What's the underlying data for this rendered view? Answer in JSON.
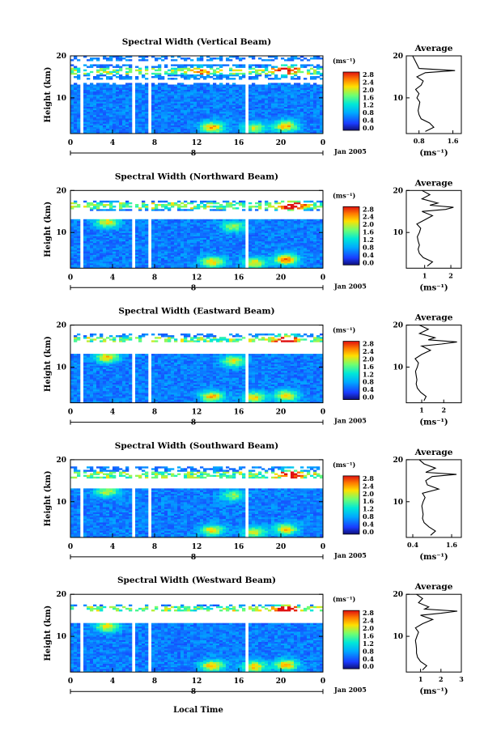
{
  "figure": {
    "date_label": "Jan 2005",
    "day_label": "8",
    "x_axis_label": "Local Time",
    "y_axis_label": "Height (km)",
    "colorbar_unit": "(ms⁻¹)",
    "colorbar_ticks": [
      "2.8",
      "2.4",
      "2.0",
      "1.6",
      "1.2",
      "0.8",
      "0.4",
      "0.0"
    ],
    "profile_title": "Average",
    "profile_xlabel": "(ms⁻¹)"
  },
  "chart_data": [
    {
      "type": "heatmap",
      "title": "Spectral Width (Vertical Beam)",
      "xlabel": "",
      "ylabel": "Height (km)",
      "x_ticks": [
        "0",
        "4",
        "8",
        "12",
        "16",
        "20",
        "0"
      ],
      "y_ticks": [
        "20",
        "10"
      ],
      "xlim": [
        0,
        24
      ],
      "ylim": [
        1.5,
        20
      ],
      "colorbar_range": [
        0.0,
        3.0
      ],
      "data_gaps_hours": [
        [
          1.0,
          1.3
        ],
        [
          5.7,
          6.0
        ],
        [
          7.4,
          7.7
        ],
        [
          16.5,
          16.8
        ]
      ],
      "empty_height_band_km": [
        [
          13.4,
          14.2
        ],
        [
          18.0,
          18.6
        ]
      ],
      "features": [
        {
          "x": 13.5,
          "y": 3.0,
          "value": 2.4
        },
        {
          "x": 17.5,
          "y": 2.8,
          "value": 2.0
        },
        {
          "x": 20.5,
          "y": 3.3,
          "value": 2.4
        },
        {
          "x": 12.5,
          "y": 16.5,
          "value": 1.4
        },
        {
          "x": 20.5,
          "y": 16.6,
          "value": 2.2
        }
      ],
      "profile": {
        "xlim": [
          0.5,
          1.8
        ],
        "x_ticks": [
          "0.8",
          "1.6"
        ],
        "heights": [
          2,
          3,
          4,
          5,
          6,
          7,
          8,
          9,
          10,
          11,
          12,
          13,
          14,
          15,
          16,
          16.5,
          17,
          18,
          19,
          20
        ],
        "values": [
          0.95,
          1.15,
          1.05,
          0.85,
          0.8,
          0.78,
          0.8,
          0.82,
          0.75,
          0.8,
          0.72,
          0.85,
          0.9,
          0.75,
          0.95,
          1.65,
          0.8,
          0.75,
          0.7,
          0.65
        ]
      }
    },
    {
      "type": "heatmap",
      "title": "Spectral Width (Northward Beam)",
      "xlabel": "",
      "ylabel": "Height (km)",
      "x_ticks": [
        "0",
        "4",
        "8",
        "12",
        "16",
        "20",
        "0"
      ],
      "y_ticks": [
        "20",
        "10"
      ],
      "xlim": [
        0,
        24
      ],
      "ylim": [
        1.5,
        20
      ],
      "colorbar_range": [
        0.0,
        3.0
      ],
      "data_gaps_hours": [
        [
          1.0,
          1.3
        ],
        [
          5.7,
          6.0
        ],
        [
          7.4,
          7.7
        ],
        [
          16.5,
          16.8
        ]
      ],
      "empty_height_band_km": [
        [
          13.2,
          15.2
        ],
        [
          17.4,
          20
        ]
      ],
      "features": [
        {
          "x": 13.5,
          "y": 3.0,
          "value": 2.3
        },
        {
          "x": 17.5,
          "y": 2.8,
          "value": 2.2
        },
        {
          "x": 20.5,
          "y": 3.6,
          "value": 2.6
        },
        {
          "x": 3.5,
          "y": 12.5,
          "value": 2.2
        },
        {
          "x": 21.0,
          "y": 16.5,
          "value": 2.8
        },
        {
          "x": 15.5,
          "y": 11.5,
          "value": 1.9
        }
      ],
      "profile": {
        "xlim": [
          0.3,
          2.4
        ],
        "x_ticks": [
          "1",
          "2"
        ],
        "heights": [
          2,
          3,
          4,
          5,
          6,
          7,
          8,
          9,
          10,
          11,
          12,
          13,
          14,
          15,
          15.5,
          16,
          16.5,
          17,
          18,
          19,
          20
        ],
        "values": [
          1.1,
          1.3,
          0.95,
          0.8,
          0.75,
          0.8,
          0.75,
          0.72,
          0.8,
          0.85,
          0.7,
          1.0,
          1.3,
          0.9,
          1.8,
          2.1,
          1.2,
          1.5,
          0.9,
          1.2,
          0.9
        ]
      }
    },
    {
      "type": "heatmap",
      "title": "Spectral Width (Eastward Beam)",
      "xlabel": "",
      "ylabel": "Height (km)",
      "x_ticks": [
        "0",
        "4",
        "8",
        "12",
        "16",
        "20",
        "0"
      ],
      "y_ticks": [
        "20",
        "10"
      ],
      "xlim": [
        0,
        24
      ],
      "ylim": [
        1.5,
        20
      ],
      "colorbar_range": [
        0.0,
        3.0
      ],
      "data_gaps_hours": [
        [
          1.0,
          1.3
        ],
        [
          5.7,
          6.0
        ],
        [
          7.4,
          7.7
        ],
        [
          16.5,
          16.8
        ]
      ],
      "empty_height_band_km": [
        [
          13.2,
          15.8
        ],
        [
          17.8,
          20
        ]
      ],
      "features": [
        {
          "x": 13.5,
          "y": 3.0,
          "value": 2.4
        },
        {
          "x": 17.5,
          "y": 2.8,
          "value": 2.2
        },
        {
          "x": 20.5,
          "y": 3.2,
          "value": 2.3
        },
        {
          "x": 3.5,
          "y": 12.4,
          "value": 2.3
        },
        {
          "x": 20.5,
          "y": 16.5,
          "value": 2.8
        },
        {
          "x": 15.5,
          "y": 11.5,
          "value": 2.1
        }
      ],
      "profile": {
        "xlim": [
          0.3,
          2.8
        ],
        "x_ticks": [
          "1",
          "2"
        ],
        "heights": [
          2,
          3,
          4,
          5,
          6,
          7,
          8,
          9,
          10,
          11,
          12,
          13,
          14,
          15,
          15.5,
          16,
          16.5,
          17,
          18,
          19,
          20
        ],
        "values": [
          1.1,
          1.2,
          0.95,
          0.8,
          0.75,
          0.78,
          0.75,
          0.72,
          0.8,
          0.85,
          0.7,
          1.0,
          1.4,
          1.0,
          1.9,
          2.6,
          1.3,
          1.6,
          0.9,
          1.3,
          0.9
        ]
      }
    },
    {
      "type": "heatmap",
      "title": "Spectral Width (Southward Beam)",
      "xlabel": "",
      "ylabel": "Height (km)",
      "x_ticks": [
        "0",
        "4",
        "8",
        "12",
        "16",
        "20",
        "0"
      ],
      "y_ticks": [
        "20",
        "10"
      ],
      "xlim": [
        0,
        24
      ],
      "ylim": [
        1.5,
        20
      ],
      "colorbar_range": [
        0.0,
        3.0
      ],
      "data_gaps_hours": [
        [
          1.0,
          1.3
        ],
        [
          5.7,
          6.0
        ],
        [
          7.4,
          7.7
        ],
        [
          16.5,
          16.8
        ]
      ],
      "empty_height_band_km": [
        [
          13.0,
          15.4
        ],
        [
          18.2,
          20
        ]
      ],
      "features": [
        {
          "x": 13.5,
          "y": 3.2,
          "value": 2.2
        },
        {
          "x": 17.5,
          "y": 2.8,
          "value": 2.1
        },
        {
          "x": 20.5,
          "y": 3.5,
          "value": 2.3
        },
        {
          "x": 3.5,
          "y": 12.5,
          "value": 2.0
        },
        {
          "x": 21.0,
          "y": 16.5,
          "value": 2.4
        },
        {
          "x": 15.5,
          "y": 11.5,
          "value": 1.8
        }
      ],
      "profile": {
        "xlim": [
          0.2,
          1.9
        ],
        "x_ticks": [
          "0.4",
          "1.6"
        ],
        "heights": [
          2,
          3,
          4,
          5,
          6,
          7,
          8,
          9,
          10,
          11,
          12,
          13,
          14,
          15,
          16,
          16.5,
          17,
          18,
          19,
          20
        ],
        "values": [
          0.95,
          1.1,
          0.9,
          0.75,
          0.7,
          0.72,
          0.7,
          0.68,
          0.72,
          0.78,
          0.7,
          1.2,
          0.85,
          0.8,
          1.0,
          1.75,
          0.8,
          1.1,
          0.75,
          0.6
        ]
      }
    },
    {
      "type": "heatmap",
      "title": "Spectral Width (Westward Beam)",
      "xlabel": "Local Time",
      "ylabel": "Height (km)",
      "x_ticks": [
        "0",
        "4",
        "8",
        "12",
        "16",
        "20",
        "0"
      ],
      "y_ticks": [
        "20",
        "10"
      ],
      "xlim": [
        0,
        24
      ],
      "ylim": [
        1.5,
        20
      ],
      "colorbar_range": [
        0.0,
        3.0
      ],
      "data_gaps_hours": [
        [
          1.0,
          1.3
        ],
        [
          5.7,
          6.0
        ],
        [
          7.4,
          7.7
        ],
        [
          16.5,
          16.8
        ]
      ],
      "empty_height_band_km": [
        [
          13.2,
          15.8
        ],
        [
          17.4,
          20
        ]
      ],
      "features": [
        {
          "x": 13.5,
          "y": 3.0,
          "value": 2.4
        },
        {
          "x": 17.5,
          "y": 2.8,
          "value": 2.3
        },
        {
          "x": 20.5,
          "y": 3.2,
          "value": 2.4
        },
        {
          "x": 3.5,
          "y": 12.4,
          "value": 2.2
        },
        {
          "x": 20.5,
          "y": 16.5,
          "value": 2.6
        }
      ],
      "profile": {
        "xlim": [
          0.3,
          3.0
        ],
        "x_ticks": [
          "1",
          "2",
          "3"
        ],
        "heights": [
          2,
          3,
          4,
          5,
          6,
          7,
          8,
          9,
          10,
          11,
          12,
          13,
          14,
          15,
          15.5,
          16,
          16.5,
          17,
          18,
          19,
          20
        ],
        "values": [
          1.1,
          1.3,
          1.0,
          0.85,
          0.8,
          0.8,
          0.78,
          0.75,
          0.82,
          0.9,
          0.75,
          1.1,
          1.6,
          1.0,
          2.0,
          2.8,
          1.2,
          1.4,
          0.9,
          1.1,
          0.8
        ]
      }
    }
  ]
}
